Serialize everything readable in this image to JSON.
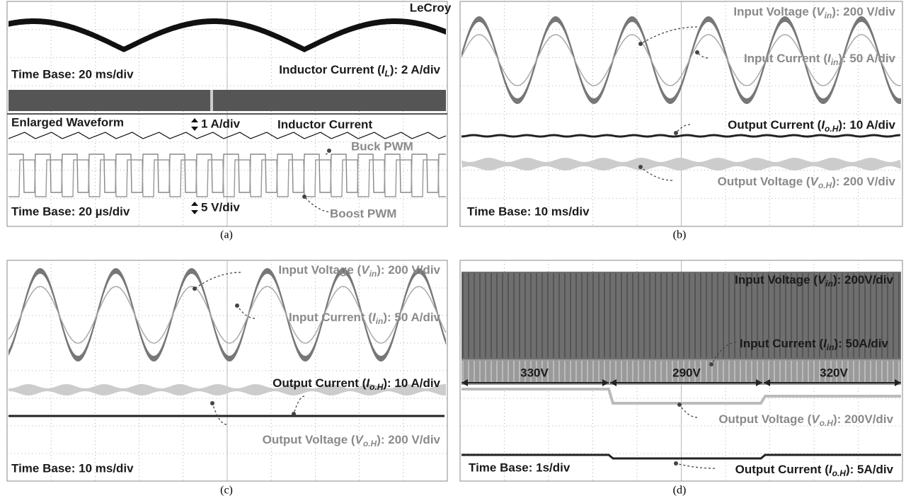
{
  "panels": [
    {
      "caption": "(a)",
      "labels": [
        {
          "text": "LeCroy"
        },
        {
          "text": "Time Base: 20 ms/div"
        },
        {
          "pre": "Inductor Current (",
          "var": "I",
          "sub": "L",
          "post": "): 2 A/div"
        },
        {
          "text": "Enlarged Waveform"
        },
        {
          "text": "1 A/div"
        },
        {
          "text": "Inductor Current"
        },
        {
          "text": "Buck PWM"
        },
        {
          "text": "5 V/div"
        },
        {
          "text": "Boost PWM"
        },
        {
          "text": "Time Base: 20 µs/div"
        }
      ]
    },
    {
      "caption": "(b)",
      "labels": [
        {
          "pre": "Input Voltage (",
          "var": "V",
          "sub": "in",
          "post": "): 200 V/div"
        },
        {
          "pre": "Input Current (",
          "var": "I",
          "sub": "in",
          "post": "): 50 A/div"
        },
        {
          "pre": "Output Current (",
          "var": "I",
          "sub": "o.H",
          "post": "): 10 A/div"
        },
        {
          "pre": "Output Voltage (",
          "var": "V",
          "sub": "o.H",
          "post": "): 200 V/div"
        },
        {
          "text": "Time Base: 10 ms/div"
        }
      ]
    },
    {
      "caption": "(c)",
      "labels": [
        {
          "pre": "Input Voltage (",
          "var": "V",
          "sub": "in",
          "post": "): 200 V/div"
        },
        {
          "pre": "Input Current (",
          "var": "I",
          "sub": "in",
          "post": "): 50 A/div"
        },
        {
          "pre": "Output Current (",
          "var": "I",
          "sub": "o.H",
          "post": "): 10 A/div"
        },
        {
          "pre": "Output Voltage (",
          "var": "V",
          "sub": "o.H",
          "post": "): 200 V/div"
        },
        {
          "text": "Time Base: 10 ms/div"
        }
      ]
    },
    {
      "caption": "(d)",
      "labels": [
        {
          "pre": "Input Voltage (",
          "var": "V",
          "sub": "in",
          "post": "): 200V/div"
        },
        {
          "pre": "Input Current (",
          "var": "I",
          "sub": "in",
          "post": "): 50A/div"
        },
        {
          "text": "330V"
        },
        {
          "text": "290V"
        },
        {
          "text": "320V"
        },
        {
          "pre": "Output Voltage (",
          "var": "V",
          "sub": "o.H",
          "post": "): 200V/div"
        },
        {
          "text": "Time Base: 1s/div"
        },
        {
          "pre": "Output Current (",
          "var": "I",
          "sub": "o.H",
          "post": "): 5A/div"
        }
      ]
    }
  ]
}
